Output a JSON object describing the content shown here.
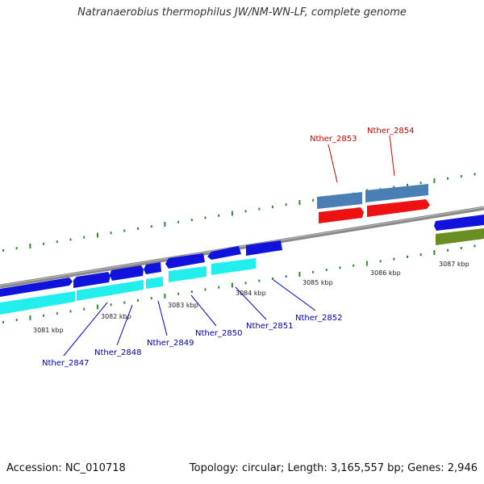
{
  "title": "Natranaerobius thermophilus JW/NM-WN-LF, complete genome",
  "footer": {
    "accession": "Accession: NC_010718",
    "summary": "Topology: circular; Length: 3,165,557 bp; Genes: 2,946"
  },
  "colors": {
    "backbone": "#8a8a8a",
    "cds_forward": "#1212dd",
    "cds_reverse_strand": "#22eeee",
    "gene_rna": "#4a7fb5",
    "cds_red": "#ee1111",
    "other_feature": "#6b8e23",
    "tick": "#2e8b2e",
    "label_blue": "#0000aa",
    "label_red": "#cc0000"
  },
  "scale_labels": [
    "3081 kbp",
    "3082 kbp",
    "3083 kbp",
    "3084 kbp",
    "3085 kbp",
    "3086 kbp",
    "3087 kbp"
  ],
  "genes": [
    {
      "label": "Nther_2847",
      "color_key": "label_blue"
    },
    {
      "label": "Nther_2848",
      "color_key": "label_blue"
    },
    {
      "label": "Nther_2849",
      "color_key": "label_blue"
    },
    {
      "label": "Nther_2850",
      "color_key": "label_blue"
    },
    {
      "label": "Nther_2851",
      "color_key": "label_blue"
    },
    {
      "label": "Nther_2852",
      "color_key": "label_blue"
    },
    {
      "label": "Nther_2853",
      "color_key": "label_red"
    },
    {
      "label": "Nther_2854",
      "color_key": "label_red"
    }
  ]
}
